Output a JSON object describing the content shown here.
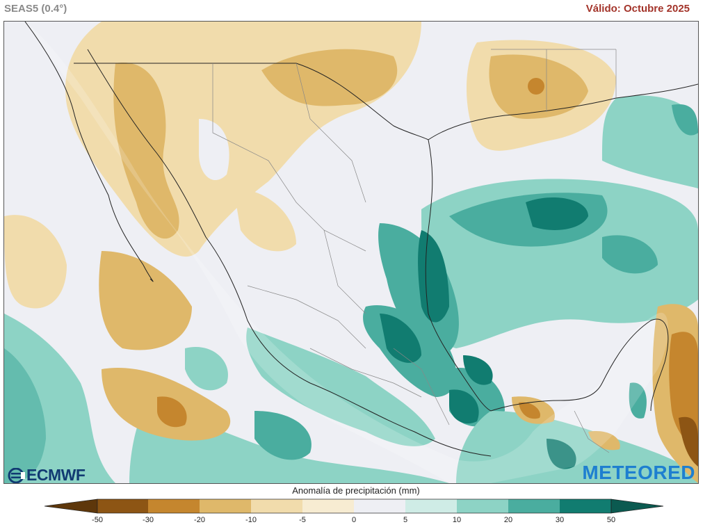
{
  "header": {
    "model": "SEAS5 (0.4°)",
    "valid": "Válido: Octubre 2025"
  },
  "logos": {
    "left": "ECMWF",
    "right": "METEORED"
  },
  "legend": {
    "title": "Anomalía de precipitación (mm)",
    "ticks": [
      "-50",
      "-30",
      "-20",
      "-10",
      "-5",
      "0",
      "5",
      "10",
      "20",
      "30",
      "50"
    ],
    "colors": [
      "#8d5514",
      "#c5862e",
      "#dfb86a",
      "#f1dcac",
      "#f7ecd2",
      "#eeeff4",
      "#cfece6",
      "#8dd3c5",
      "#4aad9f",
      "#117c70"
    ]
  },
  "map": {
    "region": "México",
    "variable": "precipitation-anomaly"
  }
}
